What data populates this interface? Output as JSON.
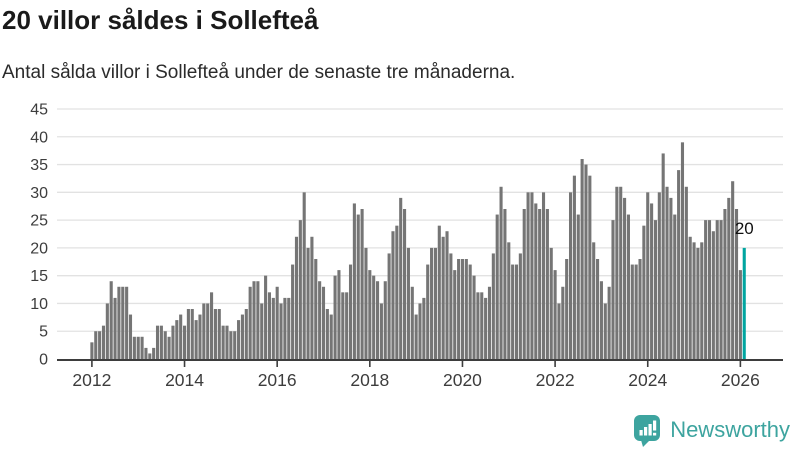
{
  "header": {
    "title": "20 villor såldes i Sollefteå",
    "subtitle": "Antal sålda villor i Sollefteå under de senaste tre månaderna."
  },
  "chart_data": {
    "type": "bar",
    "title": "20 villor såldes i Sollefteå",
    "subtitle": "Antal sålda villor i Sollefteå under de senaste tre månaderna.",
    "x_start": "2012-01",
    "x_interval": "month",
    "values": [
      3,
      5,
      5,
      6,
      10,
      14,
      11,
      13,
      13,
      13,
      8,
      4,
      4,
      4,
      2,
      1,
      2,
      6,
      6,
      5,
      4,
      6,
      7,
      8,
      6,
      9,
      9,
      7,
      8,
      10,
      10,
      12,
      9,
      9,
      6,
      6,
      5,
      5,
      7,
      8,
      9,
      13,
      14,
      14,
      10,
      15,
      12,
      11,
      13,
      10,
      11,
      11,
      17,
      22,
      25,
      30,
      20,
      22,
      18,
      14,
      13,
      9,
      8,
      15,
      16,
      12,
      12,
      17,
      28,
      26,
      27,
      20,
      16,
      15,
      14,
      10,
      14,
      19,
      23,
      24,
      29,
      27,
      20,
      13,
      8,
      10,
      11,
      17,
      20,
      20,
      24,
      22,
      23,
      19,
      16,
      18,
      18,
      18,
      17,
      15,
      12,
      12,
      11,
      13,
      19,
      26,
      31,
      27,
      21,
      17,
      17,
      19,
      27,
      30,
      30,
      28,
      27,
      30,
      27,
      20,
      16,
      10,
      13,
      18,
      30,
      33,
      26,
      36,
      35,
      33,
      21,
      18,
      14,
      10,
      13,
      25,
      31,
      31,
      29,
      26,
      17,
      17,
      18,
      24,
      30,
      28,
      25,
      30,
      37,
      31,
      29,
      26,
      34,
      39,
      31,
      22,
      21,
      20,
      21,
      25,
      25,
      23,
      25,
      25,
      27,
      29,
      32,
      27,
      16,
      20
    ],
    "highlight_index": 169,
    "highlight_value_label": "20",
    "ylim": [
      0,
      45
    ],
    "yticks": [
      0,
      5,
      10,
      15,
      20,
      25,
      30,
      35,
      40,
      45
    ],
    "xtick_years": [
      "2012",
      "2014",
      "2016",
      "2018",
      "2020",
      "2022",
      "2024",
      "2026"
    ],
    "grid": true,
    "legend": "none",
    "bar_color": "#757575",
    "highlight_color": "#00a5a0",
    "gridline_color": "#e2e2e2",
    "axis_color": "#3d3d3d",
    "tick_label_color": "#3d3d3d",
    "annotation_color": "#111111"
  },
  "annotation": {
    "last_value_label": "20"
  },
  "footer": {
    "brand": "Newsworthy",
    "brand_color": "#3da49f",
    "logo_icon": "speech-bubble-bar-chart-icon"
  }
}
